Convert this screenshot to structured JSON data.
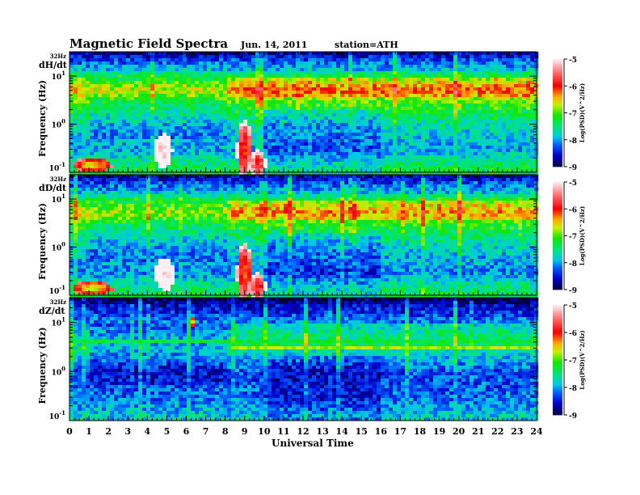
{
  "chart_data": {
    "type": "heatmap",
    "title": "Magnetic Field Spectra",
    "date": "Jun. 14, 2011",
    "station": "station=ATH",
    "xlabel": "Universal Time",
    "xlim": [
      0,
      24
    ],
    "xticks": [
      "0",
      "1",
      "2",
      "3",
      "4",
      "5",
      "6",
      "7",
      "8",
      "9",
      "10",
      "11",
      "12",
      "13",
      "14",
      "15",
      "16",
      "17",
      "18",
      "19",
      "20",
      "21",
      "22",
      "23",
      "24"
    ],
    "ylabel": "Frequency (Hz)",
    "ylim_hz": [
      0.1,
      32
    ],
    "top_label": "32Hz",
    "yticks": [
      {
        "base": "10",
        "exp": "1",
        "value": 10
      },
      {
        "base": "10",
        "exp": "0",
        "value": 1
      },
      {
        "base": "10",
        "exp": "-1",
        "value": 0.1
      }
    ],
    "colorbar": {
      "label": "Log(PSD)(V^2/Hz)",
      "range": [
        -9,
        -5
      ],
      "ticks": [
        "-5",
        "-6",
        "-7",
        "-8",
        "-9"
      ]
    },
    "panels": [
      {
        "name": "dH/dt",
        "profile": [
          [
            32,
            -8.8
          ],
          [
            22,
            -8.3
          ],
          [
            14,
            -7.9
          ],
          [
            10,
            -7.3
          ],
          [
            8,
            -6.9
          ],
          [
            5,
            -6.4
          ],
          [
            3,
            -7.0
          ],
          [
            1,
            -7.7
          ],
          [
            0.3,
            -8.0
          ],
          [
            0.12,
            -7.3
          ]
        ],
        "events": [
          {
            "t": 4.8,
            "f": 0.28,
            "level": -5.2,
            "dt": 0.5,
            "df": 0.35
          },
          {
            "t": 9.0,
            "f": 0.3,
            "level": -6.1,
            "dt": 0.4,
            "df": 0.6
          },
          {
            "t": 9.7,
            "f": 0.15,
            "level": -5.9,
            "dt": 0.4,
            "df": 0.3
          },
          {
            "t": 1.2,
            "f": 0.14,
            "level": -6.6,
            "dt": 1.0,
            "df": 0.15
          }
        ],
        "lines": [
          {
            "f": 5,
            "level": -6.0,
            "t0": 8.3,
            "t1": 24
          }
        ]
      },
      {
        "name": "dD/dt",
        "profile": [
          [
            32,
            -8.8
          ],
          [
            22,
            -8.3
          ],
          [
            14,
            -7.9
          ],
          [
            10,
            -7.3
          ],
          [
            8,
            -6.9
          ],
          [
            5,
            -6.6
          ],
          [
            3,
            -7.1
          ],
          [
            1,
            -7.8
          ],
          [
            0.3,
            -8.1
          ],
          [
            0.12,
            -7.4
          ]
        ],
        "events": [
          {
            "t": 4.9,
            "f": 0.27,
            "level": -5.2,
            "dt": 0.5,
            "df": 0.35
          },
          {
            "t": 9.0,
            "f": 0.3,
            "level": -6.2,
            "dt": 0.4,
            "df": 0.6
          },
          {
            "t": 9.7,
            "f": 0.15,
            "level": -6.0,
            "dt": 0.4,
            "df": 0.3
          },
          {
            "t": 1.2,
            "f": 0.14,
            "level": -6.7,
            "dt": 1.0,
            "df": 0.15
          }
        ],
        "lines": [
          {
            "f": 5,
            "level": -6.3,
            "t0": 8.3,
            "t1": 24
          }
        ]
      },
      {
        "name": "dZ/dt",
        "profile": [
          [
            32,
            -9.0
          ],
          [
            22,
            -8.6
          ],
          [
            14,
            -8.3
          ],
          [
            10,
            -8.1
          ],
          [
            6,
            -7.8
          ],
          [
            3,
            -7.6
          ],
          [
            1,
            -8.3
          ],
          [
            0.3,
            -8.2
          ],
          [
            0.12,
            -7.8
          ]
        ],
        "events": [
          {
            "t": 6.4,
            "f": 10,
            "level": -7.0,
            "dt": 0.1,
            "df": 0.15
          }
        ],
        "lines": [
          {
            "f": 3,
            "level": -6.8,
            "t0": 8.3,
            "t1": 24
          },
          {
            "f": 4.2,
            "level": -7.3,
            "t0": 0,
            "t1": 24
          }
        ]
      }
    ]
  }
}
